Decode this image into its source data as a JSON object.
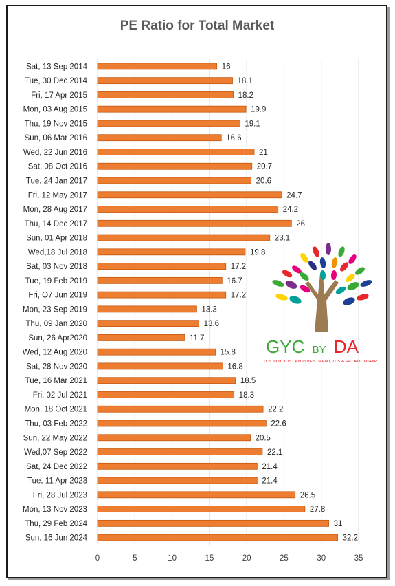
{
  "chart_data": {
    "type": "bar",
    "orientation": "horizontal",
    "title": "PE Ratio for Total Market",
    "categories": [
      "Sat, 13 Sep 2014",
      "Tue, 30 Dec 2014",
      "Fri, 17 Apr 2015",
      "Mon, 03 Aug 2015",
      "Thu, 19 Nov 2015",
      "Sun, 06 Mar 2016",
      "Wed, 22 Jun 2016",
      "Sat, 08 Oct 2016",
      "Tue, 24 Jan 2017",
      "Fri, 12 May 2017",
      "Mon, 28 Aug 2017",
      "Thu, 14 Dec 2017",
      "Sun, 01 Apr 2018",
      "Wed,18 Jul 2018",
      "Sat, 03 Nov 2018",
      "Tue, 19 Feb 2019",
      "Fri, O7 Jun 2019",
      "Mon, 23 Sep 2019",
      "Thu, 09 Jan 2020",
      "Sun, 26 Apr2020",
      "Wed, 12 Aug 2020",
      "Sat, 28 Nov 2020",
      "Tue, 16 Mar 2021",
      "Fri, 02 Jul 2021",
      "Mon, 18 Oct 2021",
      "Thu, 03 Feb 2022",
      "Sun, 22 May 2022",
      "Wed,07 Sep 2022",
      "Sat, 24 Dec 2022",
      "Tue, 11 Apr 2023",
      "Fri, 28 Jul 2023",
      "Mon, 13 Nov 2023",
      "Thu, 29 Feb 2024",
      "Sun, 16 Jun 2024"
    ],
    "values": [
      16,
      18.1,
      18.2,
      19.9,
      19.1,
      16.6,
      21,
      20.7,
      20.6,
      24.7,
      24.2,
      26,
      23.1,
      19.8,
      17.2,
      16.7,
      17.2,
      13.3,
      13.6,
      11.7,
      15.8,
      16.8,
      18.5,
      18.3,
      22.2,
      22.6,
      20.5,
      22.1,
      21.4,
      21.4,
      26.5,
      27.8,
      31,
      32.2
    ],
    "value_labels": [
      "16",
      "18.1",
      "18.2",
      "19.9",
      "19.1",
      "16.6",
      "21",
      "20.7",
      "20.6",
      "24.7",
      "24.2",
      "26",
      "23.1",
      "19.8",
      "17.2",
      "16.7",
      "17.2",
      "13.3",
      "13.6",
      "11.7",
      "15.8",
      "16.8",
      "18.5",
      "18.3",
      "22.2",
      "22.6",
      "20.5",
      "22.1",
      "21.4",
      "21.4",
      "26.5",
      "27.8",
      "31",
      "32.2"
    ],
    "xlim": [
      0,
      35
    ],
    "xticks": [
      0,
      5,
      10,
      15,
      20,
      25,
      30,
      35
    ],
    "grid": "vertical",
    "bar_color": "#ed7d31",
    "bar_edge_color": "#c55a11"
  },
  "logo": {
    "brand_left": "GYC",
    "brand_mid": "BY",
    "brand_right": "DA",
    "tagline": "IT'S NOT JUST AN INVESTMENT, IT'S A RELATIONSHIP.",
    "green": "#3aa935",
    "red": "#e8262b",
    "trunk": "#9c7a52"
  }
}
